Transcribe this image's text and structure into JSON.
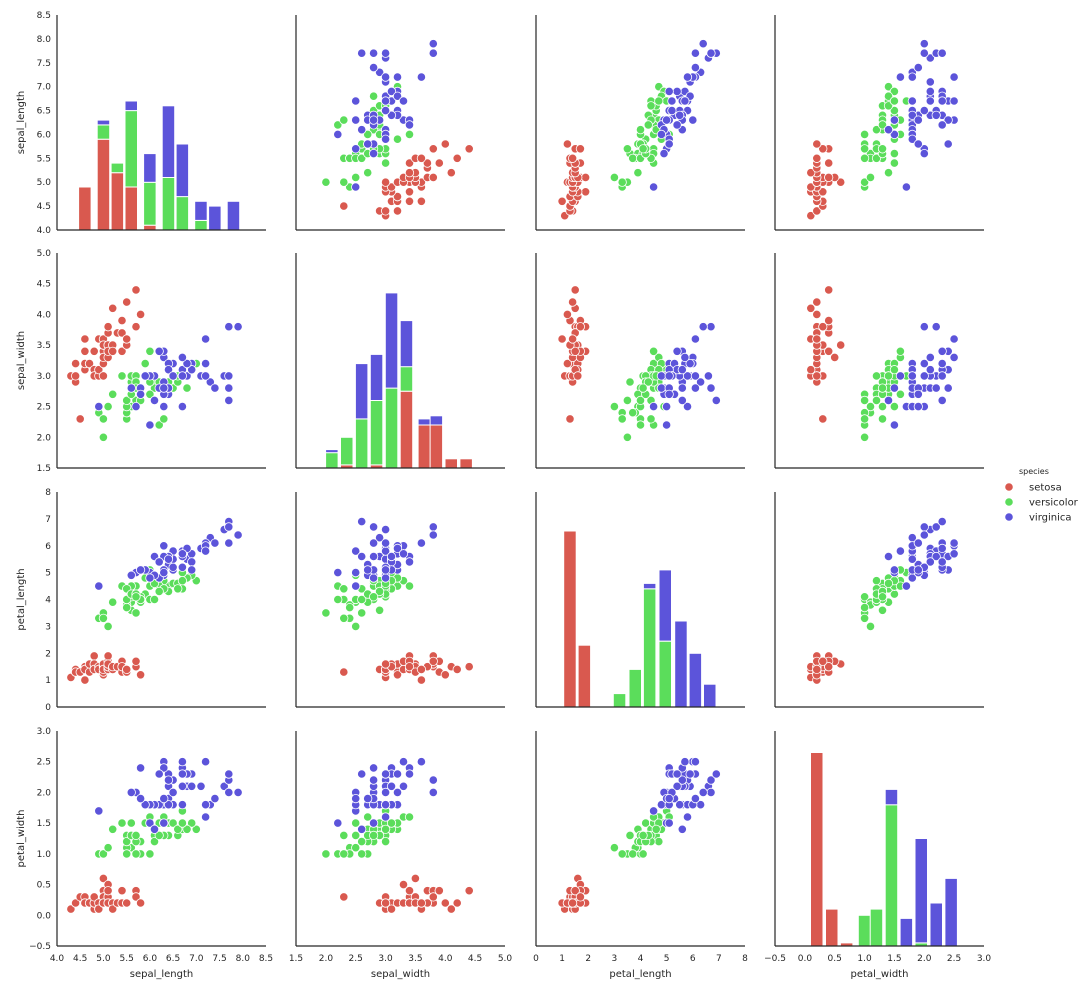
{
  "chart_data": {
    "type": "pairplot",
    "variables": [
      "sepal_length",
      "sepal_width",
      "petal_length",
      "petal_width"
    ],
    "axes": {
      "sepal_length": {
        "lim": [
          4.0,
          8.5
        ],
        "ticks": [
          "4.0",
          "4.5",
          "5.0",
          "5.5",
          "6.0",
          "6.5",
          "7.0",
          "7.5",
          "8.0",
          "8.5"
        ]
      },
      "sepal_width": {
        "lim": [
          1.5,
          5.0
        ],
        "ticks": [
          "1.5",
          "2.0",
          "2.5",
          "3.0",
          "3.5",
          "4.0",
          "4.5",
          "5.0"
        ]
      },
      "petal_length": {
        "lim": [
          0,
          8
        ],
        "ticks": [
          "0",
          "1",
          "2",
          "3",
          "4",
          "5",
          "6",
          "7",
          "8"
        ]
      },
      "petal_width": {
        "lim": [
          -0.5,
          3.0
        ],
        "ticks": [
          "−0.5",
          "0.0",
          "0.5",
          "1.0",
          "1.5",
          "2.0",
          "2.5",
          "3.0"
        ]
      }
    },
    "legend": {
      "title": "species",
      "placement": "center-right",
      "entries": [
        {
          "label": "setosa",
          "color": "#d9594f"
        },
        {
          "label": "versicolor",
          "color": "#5bdd5b"
        },
        {
          "label": "virginica",
          "color": "#5c54da"
        }
      ]
    },
    "histograms": {
      "sepal_length": [
        {
          "x": 4.6,
          "setosa": 4.9,
          "versicolor": 4.9,
          "virginica": 4.9
        },
        {
          "x": 5.0,
          "setosa": 5.9,
          "versicolor": 6.2,
          "virginica": 6.3
        },
        {
          "x": 5.3,
          "setosa": 5.2,
          "versicolor": 5.4,
          "virginica": 5.4
        },
        {
          "x": 5.6,
          "setosa": 4.9,
          "versicolor": 6.5,
          "virginica": 6.7
        },
        {
          "x": 6.0,
          "setosa": 4.1,
          "versicolor": 5.0,
          "virginica": 5.6
        },
        {
          "x": 6.4,
          "setosa": 4.0,
          "versicolor": 5.1,
          "virginica": 6.6
        },
        {
          "x": 6.7,
          "setosa": 4.0,
          "versicolor": 4.7,
          "virginica": 5.8
        },
        {
          "x": 7.1,
          "setosa": 4.0,
          "versicolor": 4.2,
          "virginica": 4.6
        },
        {
          "x": 7.4,
          "setosa": 4.0,
          "versicolor": 4.0,
          "virginica": 4.5
        },
        {
          "x": 7.8,
          "setosa": 4.0,
          "versicolor": 4.0,
          "virginica": 4.6
        }
      ],
      "sepal_width": [
        {
          "x": 2.1,
          "setosa": 1.5,
          "versicolor": 1.75,
          "virginica": 1.8
        },
        {
          "x": 2.35,
          "setosa": 1.55,
          "versicolor": 2.0,
          "virginica": 2.0
        },
        {
          "x": 2.6,
          "setosa": 1.5,
          "versicolor": 2.3,
          "virginica": 3.2
        },
        {
          "x": 2.85,
          "setosa": 1.55,
          "versicolor": 2.6,
          "virginica": 3.35
        },
        {
          "x": 3.1,
          "setosa": 1.5,
          "versicolor": 2.8,
          "virginica": 4.35
        },
        {
          "x": 3.35,
          "setosa": 2.75,
          "versicolor": 3.15,
          "virginica": 3.9
        },
        {
          "x": 3.65,
          "setosa": 2.2,
          "versicolor": 2.2,
          "virginica": 2.3
        },
        {
          "x": 3.85,
          "setosa": 2.2,
          "versicolor": 2.2,
          "virginica": 2.35
        },
        {
          "x": 4.1,
          "setosa": 1.65,
          "versicolor": 1.65,
          "virginica": 1.65
        },
        {
          "x": 4.35,
          "setosa": 1.65,
          "versicolor": 1.65,
          "virginica": 1.65
        }
      ],
      "petal_length": [
        {
          "x": 1.3,
          "setosa": 6.55,
          "versicolor": 6.55,
          "virginica": 6.55
        },
        {
          "x": 1.85,
          "setosa": 2.3,
          "versicolor": 2.3,
          "virginica": 2.3
        },
        {
          "x": 3.2,
          "setosa": 0,
          "versicolor": 0.5,
          "virginica": 0.5
        },
        {
          "x": 3.8,
          "setosa": 0,
          "versicolor": 1.4,
          "virginica": 1.4
        },
        {
          "x": 4.35,
          "setosa": 0,
          "versicolor": 4.4,
          "virginica": 4.6
        },
        {
          "x": 4.95,
          "setosa": 0,
          "versicolor": 2.45,
          "virginica": 5.1
        },
        {
          "x": 5.55,
          "setosa": 0,
          "versicolor": 0,
          "virginica": 3.2
        },
        {
          "x": 6.1,
          "setosa": 0,
          "versicolor": 0,
          "virginica": 2.0
        },
        {
          "x": 6.65,
          "setosa": 0,
          "versicolor": 0,
          "virginica": 0.85
        }
      ],
      "petal_width": [
        {
          "x": 0.2,
          "setosa": 2.65,
          "versicolor": 2.65,
          "virginica": 2.65
        },
        {
          "x": 0.45,
          "setosa": 0.1,
          "versicolor": 0.1,
          "virginica": 0.1
        },
        {
          "x": 0.7,
          "setosa": -0.45,
          "versicolor": -0.45,
          "virginica": -0.45
        },
        {
          "x": 1.0,
          "setosa": -0.5,
          "versicolor": 0.0,
          "virginica": 0.0
        },
        {
          "x": 1.2,
          "setosa": -0.5,
          "versicolor": 0.1,
          "virginica": 0.1
        },
        {
          "x": 1.45,
          "setosa": -0.5,
          "versicolor": 1.8,
          "virginica": 2.05
        },
        {
          "x": 1.7,
          "setosa": -0.5,
          "versicolor": -0.5,
          "virginica": -0.05
        },
        {
          "x": 1.95,
          "setosa": -0.5,
          "versicolor": -0.45,
          "virginica": 1.25
        },
        {
          "x": 2.2,
          "setosa": -0.5,
          "versicolor": -0.5,
          "virginica": 0.2
        },
        {
          "x": 2.45,
          "setosa": -0.5,
          "versicolor": -0.5,
          "virginica": 0.6
        }
      ]
    },
    "samples": {
      "setosa": [
        [
          4.3,
          3.0,
          1.1,
          0.1
        ],
        [
          4.4,
          2.9,
          1.4,
          0.2
        ],
        [
          4.4,
          3.0,
          1.3,
          0.2
        ],
        [
          4.4,
          3.2,
          1.3,
          0.2
        ],
        [
          4.5,
          2.3,
          1.3,
          0.3
        ],
        [
          4.6,
          3.1,
          1.5,
          0.2
        ],
        [
          4.6,
          3.4,
          1.4,
          0.3
        ],
        [
          4.6,
          3.6,
          1.0,
          0.2
        ],
        [
          4.6,
          3.2,
          1.4,
          0.2
        ],
        [
          4.7,
          3.2,
          1.3,
          0.2
        ],
        [
          4.7,
          3.2,
          1.6,
          0.2
        ],
        [
          4.8,
          3.4,
          1.6,
          0.2
        ],
        [
          4.8,
          3.0,
          1.4,
          0.1
        ],
        [
          4.8,
          3.4,
          1.9,
          0.2
        ],
        [
          4.8,
          3.1,
          1.6,
          0.2
        ],
        [
          4.8,
          3.0,
          1.4,
          0.3
        ],
        [
          4.9,
          3.0,
          1.4,
          0.2
        ],
        [
          4.9,
          3.1,
          1.5,
          0.1
        ],
        [
          4.9,
          3.6,
          1.4,
          0.1
        ],
        [
          5.0,
          3.6,
          1.4,
          0.2
        ],
        [
          5.0,
          3.4,
          1.5,
          0.2
        ],
        [
          5.0,
          3.0,
          1.6,
          0.2
        ],
        [
          5.0,
          3.4,
          1.6,
          0.4
        ],
        [
          5.0,
          3.2,
          1.2,
          0.2
        ],
        [
          5.0,
          3.5,
          1.3,
          0.3
        ],
        [
          5.0,
          3.5,
          1.6,
          0.6
        ],
        [
          5.0,
          3.3,
          1.4,
          0.2
        ],
        [
          5.1,
          3.5,
          1.4,
          0.2
        ],
        [
          5.1,
          3.5,
          1.4,
          0.3
        ],
        [
          5.1,
          3.8,
          1.5,
          0.3
        ],
        [
          5.1,
          3.7,
          1.5,
          0.4
        ],
        [
          5.1,
          3.3,
          1.7,
          0.5
        ],
        [
          5.1,
          3.4,
          1.5,
          0.2
        ],
        [
          5.1,
          3.8,
          1.9,
          0.4
        ],
        [
          5.1,
          3.8,
          1.6,
          0.2
        ],
        [
          5.2,
          3.5,
          1.5,
          0.2
        ],
        [
          5.2,
          3.4,
          1.4,
          0.2
        ],
        [
          5.2,
          4.1,
          1.5,
          0.1
        ],
        [
          5.3,
          3.7,
          1.5,
          0.2
        ],
        [
          5.4,
          3.9,
          1.7,
          0.4
        ],
        [
          5.4,
          3.7,
          1.5,
          0.2
        ],
        [
          5.4,
          3.9,
          1.3,
          0.4
        ],
        [
          5.4,
          3.4,
          1.7,
          0.2
        ],
        [
          5.4,
          3.4,
          1.5,
          0.4
        ],
        [
          5.5,
          4.2,
          1.4,
          0.2
        ],
        [
          5.5,
          3.5,
          1.3,
          0.2
        ],
        [
          5.7,
          4.4,
          1.5,
          0.4
        ],
        [
          5.7,
          3.8,
          1.7,
          0.3
        ],
        [
          5.8,
          4.0,
          1.2,
          0.2
        ],
        [
          5.5,
          3.6,
          1.4,
          0.2
        ]
      ],
      "versicolor": [
        [
          7.0,
          3.2,
          4.7,
          1.4
        ],
        [
          6.4,
          3.2,
          4.5,
          1.5
        ],
        [
          6.9,
          3.1,
          4.9,
          1.5
        ],
        [
          5.5,
          2.3,
          4.0,
          1.3
        ],
        [
          6.5,
          2.8,
          4.6,
          1.5
        ],
        [
          5.7,
          2.8,
          4.5,
          1.3
        ],
        [
          6.3,
          3.3,
          4.7,
          1.6
        ],
        [
          4.9,
          2.4,
          3.3,
          1.0
        ],
        [
          6.6,
          2.9,
          4.6,
          1.3
        ],
        [
          5.2,
          2.7,
          3.9,
          1.4
        ],
        [
          5.0,
          2.0,
          3.5,
          1.0
        ],
        [
          5.9,
          3.0,
          4.2,
          1.5
        ],
        [
          6.0,
          2.2,
          4.0,
          1.0
        ],
        [
          6.1,
          2.9,
          4.7,
          1.4
        ],
        [
          5.6,
          2.9,
          3.6,
          1.3
        ],
        [
          6.7,
          3.1,
          4.4,
          1.4
        ],
        [
          5.6,
          3.0,
          4.5,
          1.5
        ],
        [
          5.8,
          2.7,
          4.1,
          1.0
        ],
        [
          6.2,
          2.2,
          4.5,
          1.5
        ],
        [
          5.6,
          2.5,
          3.9,
          1.1
        ],
        [
          5.9,
          3.2,
          4.8,
          1.8
        ],
        [
          6.1,
          2.8,
          4.0,
          1.3
        ],
        [
          6.3,
          2.5,
          4.9,
          1.5
        ],
        [
          6.1,
          2.8,
          4.7,
          1.2
        ],
        [
          6.4,
          2.9,
          4.3,
          1.3
        ],
        [
          6.6,
          3.0,
          4.4,
          1.4
        ],
        [
          6.8,
          2.8,
          4.8,
          1.4
        ],
        [
          6.7,
          3.0,
          5.0,
          1.7
        ],
        [
          6.0,
          2.9,
          4.5,
          1.5
        ],
        [
          5.7,
          2.6,
          3.5,
          1.0
        ],
        [
          5.5,
          2.4,
          3.8,
          1.1
        ],
        [
          5.5,
          2.4,
          3.7,
          1.0
        ],
        [
          5.8,
          2.7,
          3.9,
          1.2
        ],
        [
          6.0,
          2.7,
          5.1,
          1.6
        ],
        [
          5.4,
          3.0,
          4.5,
          1.5
        ],
        [
          6.0,
          3.4,
          4.5,
          1.6
        ],
        [
          6.7,
          3.1,
          4.7,
          1.5
        ],
        [
          6.3,
          2.3,
          4.4,
          1.3
        ],
        [
          5.6,
          3.0,
          4.1,
          1.3
        ],
        [
          5.5,
          2.5,
          4.0,
          1.3
        ],
        [
          5.5,
          2.6,
          4.4,
          1.2
        ],
        [
          6.1,
          3.0,
          4.6,
          1.4
        ],
        [
          5.8,
          2.6,
          4.0,
          1.2
        ],
        [
          5.0,
          2.3,
          3.3,
          1.0
        ],
        [
          5.6,
          2.7,
          4.2,
          1.3
        ],
        [
          5.7,
          3.0,
          4.2,
          1.2
        ],
        [
          5.7,
          2.9,
          4.2,
          1.3
        ],
        [
          6.2,
          2.9,
          4.3,
          1.3
        ],
        [
          5.1,
          2.5,
          3.0,
          1.1
        ],
        [
          5.7,
          2.8,
          4.1,
          1.3
        ]
      ],
      "virginica": [
        [
          6.3,
          3.3,
          6.0,
          2.5
        ],
        [
          5.8,
          2.7,
          5.1,
          1.9
        ],
        [
          7.1,
          3.0,
          5.9,
          2.1
        ],
        [
          6.3,
          2.9,
          5.6,
          1.8
        ],
        [
          6.5,
          3.0,
          5.8,
          2.2
        ],
        [
          7.6,
          3.0,
          6.6,
          2.1
        ],
        [
          4.9,
          2.5,
          4.5,
          1.7
        ],
        [
          7.3,
          2.9,
          6.3,
          1.8
        ],
        [
          6.7,
          2.5,
          5.8,
          1.8
        ],
        [
          7.2,
          3.6,
          6.1,
          2.5
        ],
        [
          6.5,
          3.2,
          5.1,
          2.0
        ],
        [
          6.4,
          2.7,
          5.3,
          1.9
        ],
        [
          6.8,
          3.0,
          5.5,
          2.1
        ],
        [
          5.7,
          2.5,
          5.0,
          2.0
        ],
        [
          5.8,
          2.8,
          5.1,
          2.4
        ],
        [
          6.4,
          3.2,
          5.3,
          2.3
        ],
        [
          6.5,
          3.0,
          5.5,
          1.8
        ],
        [
          7.7,
          3.8,
          6.7,
          2.2
        ],
        [
          7.7,
          2.6,
          6.9,
          2.3
        ],
        [
          6.0,
          2.2,
          5.0,
          1.5
        ],
        [
          6.9,
          3.2,
          5.7,
          2.3
        ],
        [
          5.6,
          2.8,
          4.9,
          2.0
        ],
        [
          7.7,
          2.8,
          6.7,
          2.0
        ],
        [
          6.3,
          2.7,
          4.9,
          1.8
        ],
        [
          6.7,
          3.3,
          5.7,
          2.1
        ],
        [
          7.2,
          3.2,
          6.0,
          1.8
        ],
        [
          6.2,
          2.8,
          4.8,
          1.8
        ],
        [
          6.1,
          3.0,
          4.9,
          1.8
        ],
        [
          6.4,
          2.8,
          5.6,
          2.1
        ],
        [
          7.2,
          3.0,
          5.8,
          1.6
        ],
        [
          7.4,
          2.8,
          6.1,
          1.9
        ],
        [
          7.9,
          3.8,
          6.4,
          2.0
        ],
        [
          6.4,
          2.8,
          5.6,
          2.2
        ],
        [
          6.3,
          2.8,
          5.1,
          1.5
        ],
        [
          6.1,
          2.6,
          5.6,
          1.4
        ],
        [
          7.7,
          3.0,
          6.1,
          2.3
        ],
        [
          6.3,
          3.4,
          5.6,
          2.4
        ],
        [
          6.4,
          3.1,
          5.5,
          1.8
        ],
        [
          6.0,
          3.0,
          4.8,
          1.8
        ],
        [
          6.9,
          3.1,
          5.4,
          2.1
        ],
        [
          6.7,
          3.1,
          5.6,
          2.4
        ],
        [
          6.9,
          3.1,
          5.1,
          2.3
        ],
        [
          6.8,
          3.2,
          5.9,
          2.3
        ],
        [
          6.7,
          3.3,
          5.7,
          2.5
        ],
        [
          6.7,
          3.0,
          5.2,
          2.3
        ],
        [
          6.3,
          2.5,
          5.0,
          1.9
        ],
        [
          6.5,
          3.0,
          5.2,
          2.0
        ],
        [
          6.2,
          3.4,
          5.4,
          2.3
        ],
        [
          5.9,
          3.0,
          5.1,
          1.8
        ],
        [
          5.8,
          2.7,
          5.1,
          1.9
        ]
      ]
    }
  }
}
